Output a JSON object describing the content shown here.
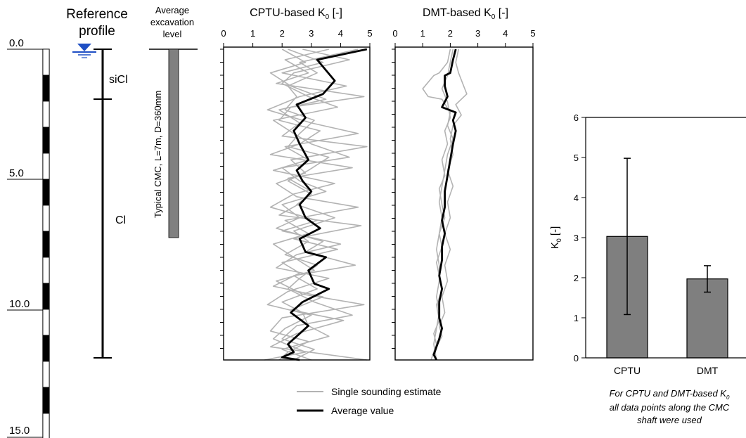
{
  "depth_scale": {
    "ticks": [
      "0.0",
      "5.0",
      "10.0",
      "15.0"
    ],
    "values": [
      0,
      5,
      10,
      15
    ]
  },
  "reference_profile": {
    "title_line1": "Reference",
    "title_line2": "profile",
    "layers": [
      {
        "name": "siCl",
        "top": 0.0,
        "bottom": 1.9
      },
      {
        "name": "Cl",
        "top": 1.9,
        "bottom": 11.8
      }
    ]
  },
  "excavation": {
    "label_line1": "Average",
    "label_line2": "excavation",
    "label_line3": "level",
    "cmc_label": "Typical CMC, L=7m, D=360mm",
    "cmc_top": 0.0,
    "cmc_bottom": 7.2
  },
  "legend": {
    "single": "Single sounding estimate",
    "average": "Average value"
  },
  "note": {
    "line1": "For CPTU and DMT-based K",
    "line1_sub": "0",
    "line2": "all data points along the CMC",
    "line3": "shaft were used"
  },
  "chart_data": [
    {
      "type": "line",
      "title": "CPTU-based K",
      "title_sub": "0",
      "title_suffix": " [-]",
      "xlim": [
        0,
        5
      ],
      "xticks": [
        "0",
        "1",
        "2",
        "3",
        "4",
        "5"
      ],
      "ylim": [
        0,
        11.8
      ],
      "series": [
        {
          "name": "Average value",
          "x": [
            4.9,
            3.2,
            3.8,
            3.4,
            2.5,
            2.8,
            2.4,
            2.6,
            2.9,
            2.5,
            2.7,
            3.0,
            2.6,
            2.8,
            3.3,
            2.6,
            2.8,
            3.5,
            2.9,
            3.1,
            3.6,
            2.7,
            2.3,
            2.9,
            2.5,
            2.2,
            2.4,
            2.0,
            2.6
          ],
          "y": [
            0.0,
            0.4,
            1.2,
            1.7,
            2.1,
            2.6,
            3.1,
            3.6,
            4.2,
            4.6,
            5.0,
            5.4,
            5.9,
            6.4,
            6.8,
            7.2,
            7.7,
            7.9,
            8.4,
            8.9,
            9.1,
            9.6,
            10.0,
            10.5,
            10.9,
            11.2,
            11.5,
            11.7,
            11.8
          ]
        },
        {
          "name": "Single sounding estimate 1",
          "x": [
            2.2,
            3.4,
            2.0,
            4.2,
            2.6,
            1.5,
            3.0,
            4.6,
            2.1,
            2.9,
            1.7,
            3.8,
            2.4,
            1.6,
            3.2,
            2.0,
            4.0,
            2.5,
            1.8,
            3.6,
            2.2,
            1.5,
            3.0,
            2.1,
            1.7,
            2.8,
            1.4
          ],
          "y": [
            0.0,
            0.5,
            0.9,
            1.4,
            1.8,
            2.3,
            2.8,
            3.2,
            3.7,
            4.2,
            4.6,
            5.1,
            5.5,
            6.0,
            6.5,
            6.9,
            7.4,
            7.8,
            8.3,
            8.7,
            9.2,
            9.7,
            10.1,
            10.6,
            11.0,
            11.5,
            11.8
          ]
        },
        {
          "name": "Single sounding estimate 2",
          "x": [
            3.6,
            2.1,
            2.9,
            1.8,
            4.8,
            2.3,
            1.9,
            3.3,
            2.6,
            1.6,
            4.4,
            2.2,
            3.0,
            2.7,
            1.9,
            4.7,
            2.4,
            3.9,
            2.0,
            2.6,
            1.7,
            3.4,
            2.3,
            4.1,
            2.5,
            1.6,
            4.9
          ],
          "y": [
            0.0,
            0.4,
            0.9,
            1.3,
            1.8,
            2.2,
            2.7,
            3.1,
            3.6,
            4.0,
            4.5,
            4.9,
            5.4,
            5.8,
            6.3,
            6.7,
            7.2,
            7.6,
            8.1,
            8.5,
            9.0,
            9.4,
            9.9,
            10.3,
            10.8,
            11.3,
            11.8
          ]
        },
        {
          "name": "Single sounding estimate 3",
          "x": [
            2.0,
            2.8,
            1.6,
            2.3,
            3.5,
            1.9,
            2.6,
            2.0,
            4.9,
            2.3,
            2.8,
            1.8,
            2.5,
            4.6,
            2.1,
            2.9,
            1.7,
            2.4,
            3.1,
            1.8,
            2.7,
            4.8,
            2.0,
            1.6,
            2.9,
            2.2,
            1.9
          ],
          "y": [
            0.0,
            0.5,
            0.9,
            1.4,
            1.9,
            2.3,
            2.8,
            3.3,
            3.7,
            4.2,
            4.7,
            5.1,
            5.6,
            6.0,
            6.5,
            7.0,
            7.4,
            7.9,
            8.4,
            8.8,
            9.3,
            9.7,
            10.2,
            10.7,
            11.1,
            11.5,
            11.8
          ]
        },
        {
          "name": "Single sounding estimate 4",
          "x": [
            2.7,
            4.3,
            2.4,
            2.0,
            2.9,
            3.9,
            1.7,
            2.4,
            3.0,
            4.3,
            2.0,
            2.6,
            3.5,
            2.0,
            2.6,
            1.8,
            3.4,
            2.8,
            4.5,
            2.4,
            3.2,
            2.0,
            2.7,
            2.9,
            3.6,
            2.0,
            3.0
          ],
          "y": [
            0.0,
            0.4,
            0.9,
            1.3,
            1.8,
            2.2,
            2.7,
            3.2,
            3.6,
            4.1,
            4.5,
            5.0,
            5.4,
            5.9,
            6.4,
            6.8,
            7.3,
            7.7,
            8.2,
            8.6,
            9.1,
            9.6,
            10.0,
            10.5,
            10.9,
            11.4,
            11.8
          ]
        },
        {
          "name": "Single sounding estimate 5",
          "x": [
            4.6,
            2.6,
            3.2,
            2.2,
            2.5,
            2.1,
            3.1,
            2.6,
            2.2,
            3.6,
            2.9,
            2.2,
            3.0,
            2.5,
            3.8,
            2.4,
            2.9,
            2.1,
            3.2,
            2.6,
            2.2,
            3.1,
            4.4,
            2.5,
            2.0,
            3.1,
            2.4
          ],
          "y": [
            0.0,
            0.5,
            0.9,
            1.4,
            1.8,
            2.3,
            2.7,
            3.2,
            3.7,
            4.1,
            4.6,
            5.0,
            5.5,
            5.9,
            6.4,
            6.9,
            7.3,
            7.8,
            8.2,
            8.7,
            9.1,
            9.6,
            10.1,
            10.5,
            11.0,
            11.4,
            11.8
          ]
        }
      ]
    },
    {
      "type": "line",
      "title": "DMT-based K",
      "title_sub": "0",
      "title_suffix": " [-]",
      "xlim": [
        0,
        5
      ],
      "xticks": [
        "0",
        "1",
        "2",
        "3",
        "4",
        "5"
      ],
      "ylim": [
        0,
        11.8
      ],
      "series": [
        {
          "name": "Average value",
          "x": [
            2.2,
            2.1,
            2.0,
            1.8,
            1.8,
            1.9,
            1.7,
            2.2,
            2.1,
            2.2,
            2.1,
            2.0,
            1.9,
            1.8,
            1.8,
            1.7,
            1.8,
            1.7,
            1.7,
            1.6,
            1.7,
            1.6,
            1.6,
            1.7,
            1.6,
            1.5,
            1.4,
            1.5
          ],
          "y": [
            0.0,
            0.4,
            0.9,
            1.0,
            1.4,
            1.8,
            2.2,
            2.4,
            2.7,
            3.1,
            3.6,
            4.2,
            4.8,
            5.4,
            6.0,
            6.5,
            7.0,
            7.5,
            8.0,
            8.6,
            9.1,
            9.6,
            10.2,
            10.6,
            11.0,
            11.3,
            11.6,
            11.8
          ]
        },
        {
          "name": "Single sounding estimate 1",
          "x": [
            2.0,
            1.9,
            1.6,
            1.4,
            1.0,
            1.2,
            1.7,
            2.0,
            1.9,
            2.1,
            1.9,
            1.8,
            1.7,
            1.6,
            1.7,
            1.6,
            1.5,
            1.6,
            1.6,
            1.5,
            1.6,
            1.5,
            1.4,
            1.5
          ],
          "y": [
            0.0,
            0.5,
            0.9,
            1.0,
            1.5,
            1.8,
            1.9,
            2.4,
            2.9,
            3.4,
            4.0,
            4.6,
            5.2,
            5.8,
            6.4,
            7.0,
            7.6,
            8.2,
            8.8,
            9.4,
            10.0,
            10.6,
            11.2,
            11.8
          ]
        },
        {
          "name": "Single sounding estimate 2",
          "x": [
            2.3,
            2.2,
            2.3,
            2.6,
            2.2,
            2.4,
            2.1,
            2.0,
            2.1,
            1.9,
            2.1,
            1.9,
            2.0,
            1.8,
            2.0,
            1.8,
            1.9,
            1.7,
            1.8,
            1.6,
            1.7,
            1.5,
            1.4,
            1.5
          ],
          "y": [
            0.0,
            0.5,
            0.9,
            1.7,
            2.1,
            2.5,
            2.9,
            3.4,
            4.0,
            4.6,
            5.2,
            5.8,
            6.4,
            7.0,
            7.6,
            8.2,
            8.8,
            9.4,
            10.0,
            10.5,
            10.9,
            11.3,
            11.6,
            11.8
          ]
        },
        {
          "name": "Single sounding estimate 3",
          "x": [
            2.1,
            2.0,
            1.9,
            1.7,
            1.9,
            2.0,
            1.8,
            1.9,
            1.7,
            1.8,
            1.6,
            1.7,
            1.8,
            1.6,
            1.7,
            1.5,
            1.6,
            1.7,
            1.5,
            1.6,
            1.4,
            1.5,
            1.4,
            1.3
          ],
          "y": [
            0.0,
            0.5,
            1.0,
            1.5,
            2.0,
            2.6,
            3.1,
            3.6,
            4.2,
            4.8,
            5.3,
            5.9,
            6.4,
            7.0,
            7.5,
            8.1,
            8.6,
            9.2,
            9.7,
            10.3,
            10.8,
            11.2,
            11.5,
            11.8
          ]
        }
      ]
    },
    {
      "type": "bar",
      "categories": [
        "CPTU",
        "DMT"
      ],
      "values": [
        3.03,
        1.97
      ],
      "error_low": [
        1.08,
        1.64
      ],
      "error_high": [
        4.98,
        2.3
      ],
      "ylabel": "K",
      "ylabel_sub": "0",
      "ylabel_suffix": " [-]",
      "ylim": [
        0,
        6
      ],
      "yticks": [
        "0",
        "1",
        "2",
        "3",
        "4",
        "5",
        "6"
      ]
    }
  ],
  "colors": {
    "single": "#b3b3b3",
    "average": "#000000",
    "bar_fill": "#7f7f7f",
    "cmc_fill": "#808080",
    "water": "#1f4fc4"
  }
}
